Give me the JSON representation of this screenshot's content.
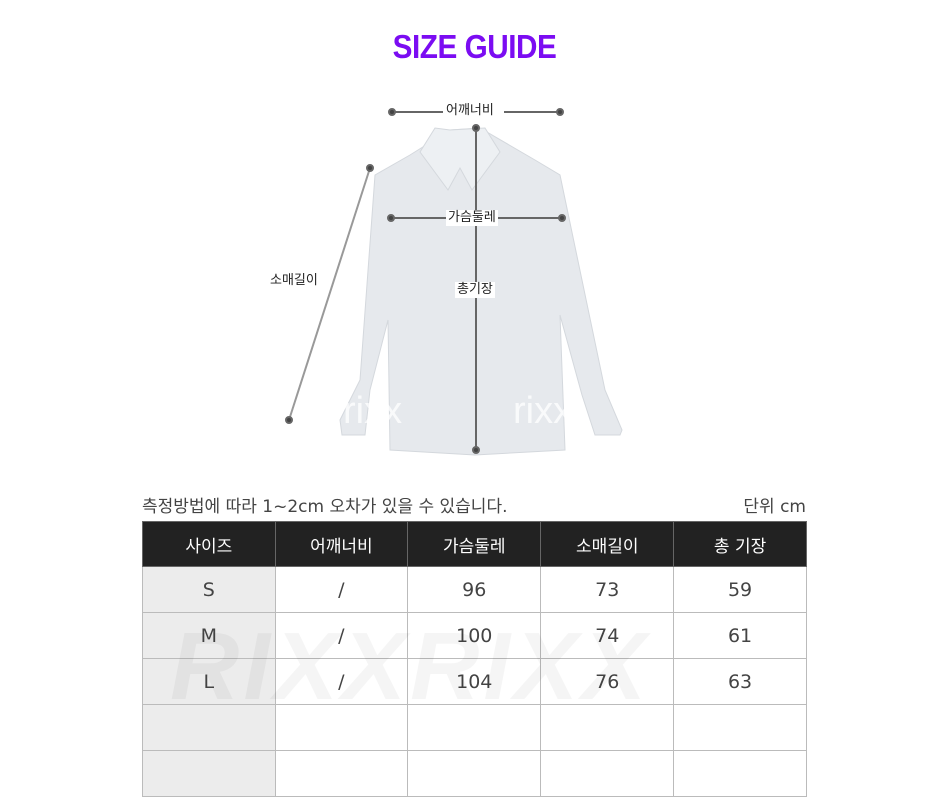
{
  "title": "SIZE GUIDE",
  "diagram": {
    "shoulder": "어깨너비",
    "chest": "가슴둘레",
    "sleeve": "소매길이",
    "length": "총기장",
    "watermark": "rixx"
  },
  "note": "측정방법에 따라 1~2cm 오차가 있을 수 있습니다.",
  "unit": "단위 cm",
  "table": {
    "headers": [
      "사이즈",
      "어깨너비",
      "가슴둘레",
      "소매길이",
      "총 기장"
    ],
    "rows": [
      [
        "S",
        "/",
        "96",
        "73",
        "59"
      ],
      [
        "M",
        "/",
        "100",
        "74",
        "61"
      ],
      [
        "L",
        "/",
        "104",
        "76",
        "63"
      ],
      [
        "",
        "",
        "",
        "",
        ""
      ],
      [
        "",
        "",
        "",
        "",
        ""
      ]
    ]
  },
  "table_watermark": "RIXXRIXX",
  "accent": "#7b0cf2"
}
